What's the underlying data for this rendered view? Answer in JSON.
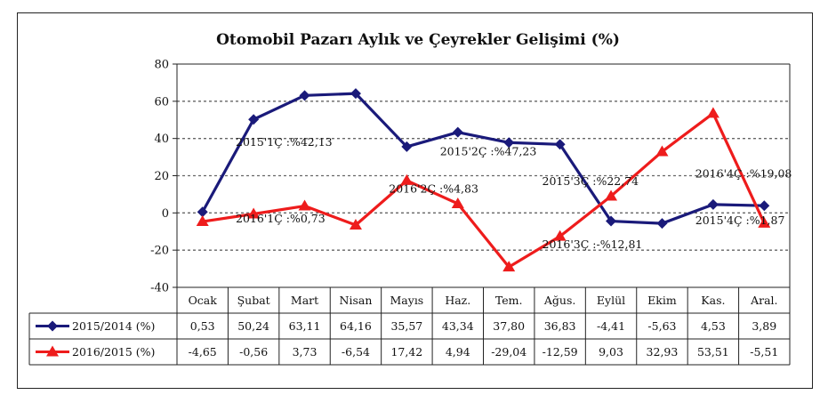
{
  "chart_data": {
    "type": "line",
    "title": "Otomobil Pazarı Aylık ve Çeyrekler Gelişimi (%)",
    "ylim": [
      -40,
      80
    ],
    "yticks": [
      80,
      60,
      40,
      20,
      0,
      -20,
      -40
    ],
    "grid": true,
    "categories": [
      "Ocak",
      "Şubat",
      "Mart",
      "Nisan",
      "Mayıs",
      "Haz.",
      "Tem.",
      "Ağus.",
      "Eylül",
      "Ekim",
      "Kas.",
      "Aral."
    ],
    "series": [
      {
        "name": "2015/2014 (%)",
        "color": "#1a1a7a",
        "marker": "diamond",
        "values": [
          0.53,
          50.24,
          63.11,
          64.16,
          35.57,
          43.34,
          37.8,
          36.83,
          -4.41,
          -5.63,
          4.53,
          3.89
        ],
        "labels": [
          "0,53",
          "50,24",
          "63,11",
          "64,16",
          "35,57",
          "43,34",
          "37,80",
          "36,83",
          "-4,41",
          "-5,63",
          "4,53",
          "3,89"
        ]
      },
      {
        "name": "2016/2015 (%)",
        "color": "#ee1c1c",
        "marker": "triangle",
        "values": [
          -4.65,
          -0.56,
          3.73,
          -6.54,
          17.42,
          4.94,
          -29.04,
          -12.59,
          9.03,
          32.93,
          53.51,
          -5.51
        ],
        "labels": [
          "-4,65",
          "-0,56",
          "3,73",
          "-6,54",
          "17,42",
          "4,94",
          "-29,04",
          "-12,59",
          "9,03",
          "32,93",
          "53,51",
          "-5,51"
        ]
      }
    ],
    "annotations": [
      {
        "text": "2015'1Ç :%42,13",
        "x": "Şubat",
        "y": 36
      },
      {
        "text": "2016'1Ç :%0,73",
        "x": "Şubat",
        "y": -5
      },
      {
        "text": "2015'2Ç :%47,23",
        "x": "Haz.",
        "y": 31
      },
      {
        "text": "2016'2Ç :%4,83",
        "x": "Mayıs",
        "y": 11
      },
      {
        "text": "2015'3Ç :%22,74",
        "x": "Ağus.",
        "y": 15
      },
      {
        "text": "2016'3Ç :-%12,81",
        "x": "Ağus.",
        "y": -19
      },
      {
        "text": "2015'4Ç :%1,87",
        "x": "Kas.",
        "y": -6
      },
      {
        "text": "2016'4Ç :%19,08",
        "x": "Kas.",
        "y": 19
      }
    ]
  }
}
